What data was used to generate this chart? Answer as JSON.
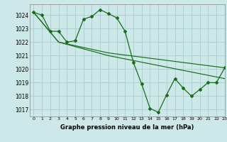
{
  "title": "Graphe pression niveau de la mer (hPa)",
  "background_color": "#cce8e8",
  "grid_color": "#aacccc",
  "line_color": "#1a6b1a",
  "xlim": [
    -0.5,
    23
  ],
  "ylim": [
    1016.5,
    1024.8
  ],
  "yticks": [
    1017,
    1018,
    1019,
    1020,
    1021,
    1022,
    1023,
    1024
  ],
  "xticks": [
    0,
    1,
    2,
    3,
    4,
    5,
    6,
    7,
    8,
    9,
    10,
    11,
    12,
    13,
    14,
    15,
    16,
    17,
    18,
    19,
    20,
    21,
    22,
    23
  ],
  "series1_x": [
    0,
    1,
    2,
    3,
    4,
    5,
    6,
    7,
    8,
    9,
    10,
    11,
    12,
    13,
    14,
    15,
    16,
    17,
    18,
    19,
    20,
    21,
    22,
    23
  ],
  "series1_y": [
    1024.2,
    1024.0,
    1022.8,
    1022.8,
    1022.0,
    1022.1,
    1023.7,
    1023.9,
    1024.4,
    1024.1,
    1023.8,
    1022.8,
    1020.5,
    1018.9,
    1017.1,
    1016.8,
    1018.1,
    1019.3,
    1018.6,
    1018.0,
    1018.5,
    1019.0,
    1019.0,
    1020.1
  ],
  "series2_x": [
    0,
    3,
    9,
    23
  ],
  "series2_y": [
    1024.2,
    1022.0,
    1021.2,
    1020.1
  ],
  "series3_x": [
    0,
    3,
    9,
    23
  ],
  "series3_y": [
    1024.2,
    1022.0,
    1021.0,
    1019.3
  ]
}
